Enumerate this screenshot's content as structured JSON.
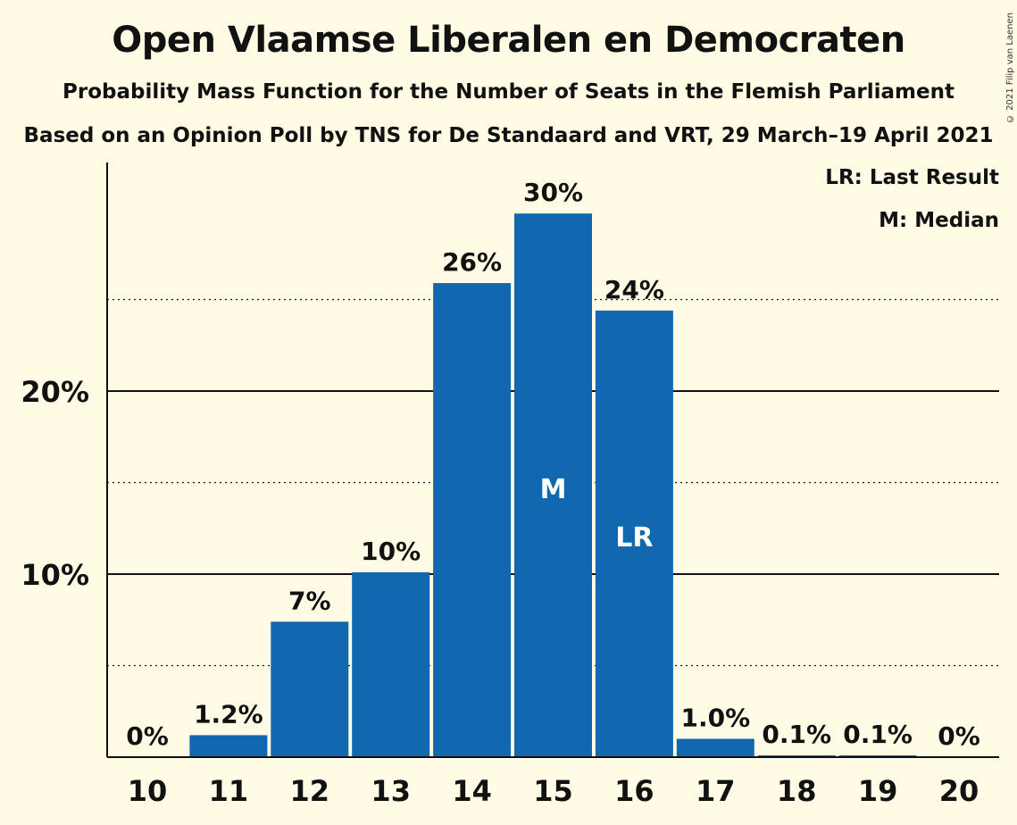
{
  "chart_data": {
    "type": "bar",
    "title": "Open Vlaamse Liberalen en Democraten",
    "subtitle": "Probability Mass Function for the Number of Seats in the Flemish Parliament",
    "subtitle2": "Based on an Opinion Poll by TNS for De Standaard and VRT, 29 March–19 April 2021",
    "copyright": "© 2021 Filip van Laenen",
    "legend": [
      "LR: Last Result",
      "M: Median"
    ],
    "categories": [
      "10",
      "11",
      "12",
      "13",
      "14",
      "15",
      "16",
      "17",
      "18",
      "19",
      "20"
    ],
    "values": [
      0,
      1.2,
      7.4,
      10.1,
      25.9,
      29.7,
      24.4,
      1.0,
      0.1,
      0.1,
      0
    ],
    "value_labels": [
      "0%",
      "1.2%",
      "7%",
      "10%",
      "26%",
      "30%",
      "24%",
      "1.0%",
      "0.1%",
      "0.1%",
      "0%"
    ],
    "markers": {
      "15": "M",
      "16": "LR"
    },
    "y_ticks": [
      10,
      20
    ],
    "y_tick_labels": [
      "10%",
      "20%"
    ],
    "minor_gridlines": [
      5,
      15,
      25
    ],
    "ylim": [
      0,
      32.5
    ],
    "bar_color": "#1168B1",
    "background": "#FFFBE5"
  }
}
